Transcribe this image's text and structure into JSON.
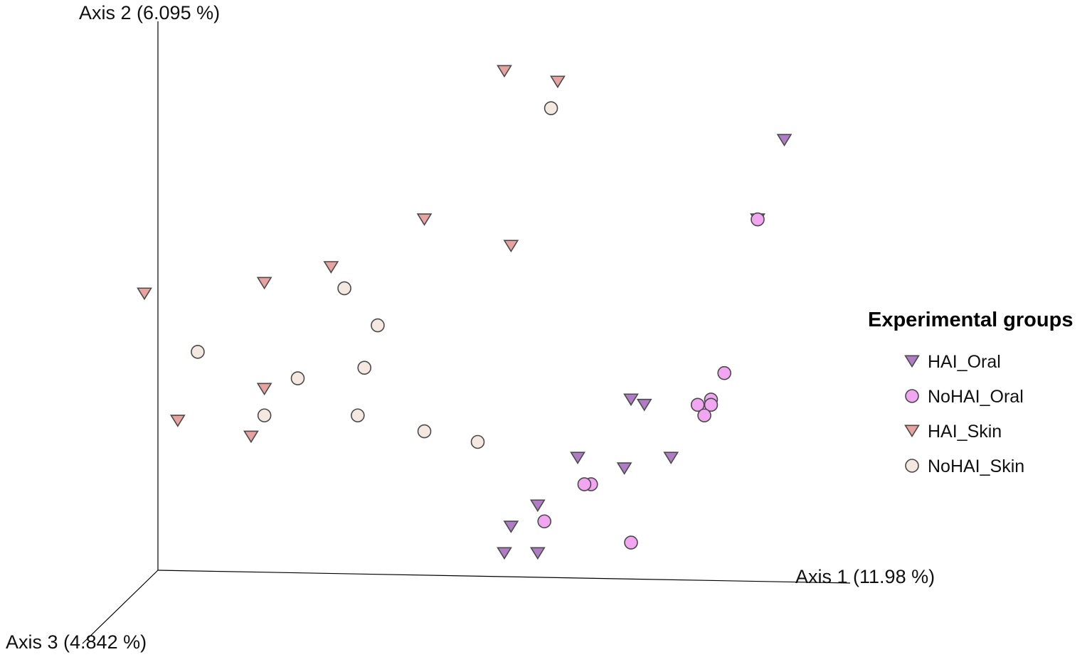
{
  "chart_data": {
    "type": "scatter",
    "subtype": "3d-pcoa",
    "title": "",
    "axes": {
      "axis1": "Axis 1 (11.98 %)",
      "axis2": "Axis 2 (6.095 %)",
      "axis3": "Axis 3 (4.842 %)"
    },
    "legend": {
      "title": "Experimental groups",
      "placement": "right"
    },
    "series": [
      {
        "name": "HAI_Oral",
        "marker": "triangle-down",
        "color": "#b07cc6",
        "points": [
          [
            0.96,
            0.87
          ],
          [
            0.92,
            0.72
          ],
          [
            0.73,
            0.38
          ],
          [
            0.75,
            0.37
          ],
          [
            0.65,
            0.27
          ],
          [
            0.79,
            0.27
          ],
          [
            0.72,
            0.25
          ],
          [
            0.59,
            0.18
          ],
          [
            0.55,
            0.14
          ],
          [
            0.54,
            0.09
          ],
          [
            0.59,
            0.09
          ]
        ]
      },
      {
        "name": "NoHAI_Oral",
        "marker": "circle",
        "color": "#f2a6f2",
        "points": [
          [
            0.92,
            0.72
          ],
          [
            0.87,
            0.43
          ],
          [
            0.85,
            0.38
          ],
          [
            0.85,
            0.37
          ],
          [
            0.83,
            0.37
          ],
          [
            0.84,
            0.35
          ],
          [
            0.67,
            0.22
          ],
          [
            0.66,
            0.22
          ],
          [
            0.6,
            0.15
          ],
          [
            0.73,
            0.11
          ]
        ]
      },
      {
        "name": "HAI_Skin",
        "marker": "triangle-down",
        "color": "#e8a3a0",
        "points": [
          [
            0.54,
            1.0
          ],
          [
            0.62,
            0.98
          ],
          [
            0.42,
            0.72
          ],
          [
            0.55,
            0.67
          ],
          [
            0.28,
            0.63
          ],
          [
            0.18,
            0.6
          ],
          [
            0.0,
            0.58
          ],
          [
            0.18,
            0.4
          ],
          [
            0.05,
            0.34
          ],
          [
            0.16,
            0.31
          ]
        ]
      },
      {
        "name": "NoHAI_Skin",
        "marker": "circle",
        "color": "#f4e8e0",
        "points": [
          [
            0.61,
            0.93
          ],
          [
            0.3,
            0.59
          ],
          [
            0.35,
            0.52
          ],
          [
            0.08,
            0.47
          ],
          [
            0.33,
            0.44
          ],
          [
            0.23,
            0.42
          ],
          [
            0.18,
            0.35
          ],
          [
            0.32,
            0.35
          ],
          [
            0.42,
            0.32
          ],
          [
            0.5,
            0.3
          ]
        ]
      }
    ]
  }
}
